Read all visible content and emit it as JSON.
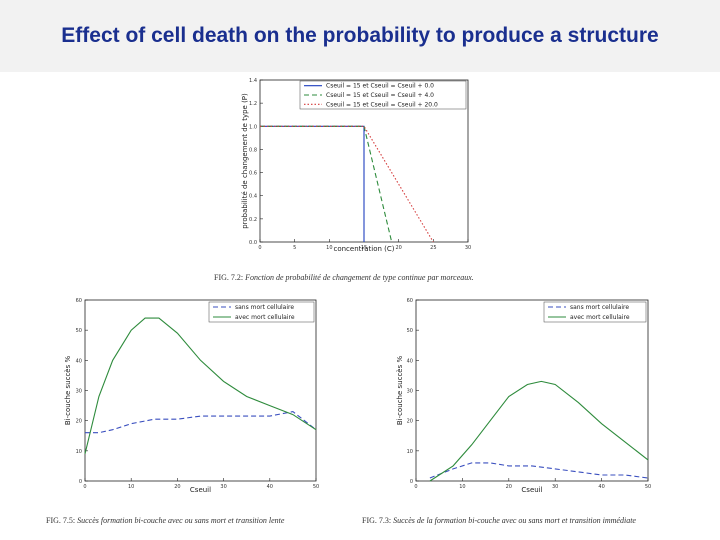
{
  "slide": {
    "title": "Effect of cell death on the probability to produce a structure"
  },
  "captions": {
    "fig1_label": "FIG. 7.2:",
    "fig1_text": "Fonction de probabilité de changement de type continue par morceaux.",
    "fig2_label": "FIG. 7.5:",
    "fig2_text": "Succès formation bi-couche avec ou sans mort et transition lente",
    "fig3_label": "FIG. 7.3:",
    "fig3_text": "Succès de la formation bi-couche avec ou sans mort et transition immédiate"
  },
  "chart_data": [
    {
      "type": "line",
      "xlabel": "concentration (C)",
      "ylabel": "probabilité de changement de type (P)",
      "xlim": [
        0,
        30
      ],
      "ylim": [
        0,
        1.4
      ],
      "xticks": [
        0,
        5,
        10,
        15,
        20,
        25,
        30
      ],
      "xtick_labels": [
        "0",
        "5",
        "10",
        "15",
        "20",
        "25",
        "30"
      ],
      "yticks": [
        0,
        0.2,
        0.4,
        0.6,
        0.8,
        1.0,
        1.2,
        1.4
      ],
      "ytick_labels": [
        "0.0",
        "0.2",
        "0.4",
        "0.6",
        "0.8",
        "1.0",
        "1.2",
        "1.4"
      ],
      "legend_position": "top-right",
      "series": [
        {
          "name": "Cseuil = 15 et Cseuil = Cseuil + 0.0",
          "color": "#1f3fbf",
          "dash": "solid",
          "x": [
            0,
            15,
            15
          ],
          "y": [
            1.0,
            1.0,
            0.0
          ]
        },
        {
          "name": "Cseuil = 15 et Cseuil = Cseuil + 4.0",
          "color": "#2e8b3c",
          "dash": "dashed",
          "x": [
            0,
            15,
            19
          ],
          "y": [
            1.0,
            1.0,
            0.0
          ]
        },
        {
          "name": "Cseuil = 15 et Cseuil = Cseuil + 20.0",
          "color": "#d43a3a",
          "dash": "dotted",
          "x": [
            0,
            15,
            25
          ],
          "y": [
            1.0,
            1.0,
            0.0
          ]
        }
      ]
    },
    {
      "type": "line",
      "xlabel": "Cseuil",
      "ylabel": "Bi-couche succès %",
      "xlim": [
        0,
        50
      ],
      "ylim": [
        0,
        60
      ],
      "xticks": [
        0,
        10,
        20,
        30,
        40,
        50
      ],
      "xtick_labels": [
        "0",
        "10",
        "20",
        "30",
        "40",
        "50"
      ],
      "yticks": [
        0,
        10,
        20,
        30,
        40,
        50,
        60
      ],
      "ytick_labels": [
        "0",
        "10",
        "20",
        "30",
        "40",
        "50",
        "60"
      ],
      "legend_position": "top-right",
      "series": [
        {
          "name": "sans mort cellulaire",
          "color": "#3a4fbf",
          "dash": "dashed",
          "x": [
            0,
            3,
            6,
            10,
            15,
            20,
            25,
            30,
            35,
            40,
            45,
            50
          ],
          "y": [
            16,
            16,
            17,
            19,
            20.5,
            20.5,
            21.5,
            21.5,
            21.5,
            21.5,
            23,
            17
          ]
        },
        {
          "name": "avec mort cellulaire",
          "color": "#2e8b3c",
          "dash": "solid",
          "x": [
            0,
            3,
            6,
            10,
            13,
            16,
            20,
            25,
            30,
            35,
            40,
            45,
            50
          ],
          "y": [
            9,
            28,
            40,
            50,
            54,
            54,
            49,
            40,
            33,
            28,
            25,
            22,
            17
          ]
        }
      ]
    },
    {
      "type": "line",
      "xlabel": "Cseuil",
      "ylabel": "Bi-couche succès %",
      "xlim": [
        0,
        50
      ],
      "ylim": [
        0,
        60
      ],
      "xticks": [
        0,
        10,
        20,
        30,
        40,
        50
      ],
      "xtick_labels": [
        "0",
        "10",
        "20",
        "30",
        "40",
        "50"
      ],
      "yticks": [
        0,
        10,
        20,
        30,
        40,
        50,
        60
      ],
      "ytick_labels": [
        "0",
        "10",
        "20",
        "30",
        "40",
        "50",
        "60"
      ],
      "legend_position": "top-right",
      "series": [
        {
          "name": "sans mort cellulaire",
          "color": "#3a4fbf",
          "dash": "dashed",
          "x": [
            3,
            8,
            12,
            16,
            20,
            25,
            30,
            35,
            40,
            45,
            50
          ],
          "y": [
            1,
            4,
            6,
            6,
            5,
            5,
            4,
            3,
            2,
            2,
            1
          ]
        },
        {
          "name": "avec mort cellulaire",
          "color": "#2e8b3c",
          "dash": "solid",
          "x": [
            3,
            8,
            12,
            16,
            20,
            24,
            27,
            30,
            35,
            40,
            45,
            50
          ],
          "y": [
            0,
            5,
            12,
            20,
            28,
            32,
            33,
            32,
            26,
            19,
            13,
            7
          ]
        }
      ]
    }
  ]
}
